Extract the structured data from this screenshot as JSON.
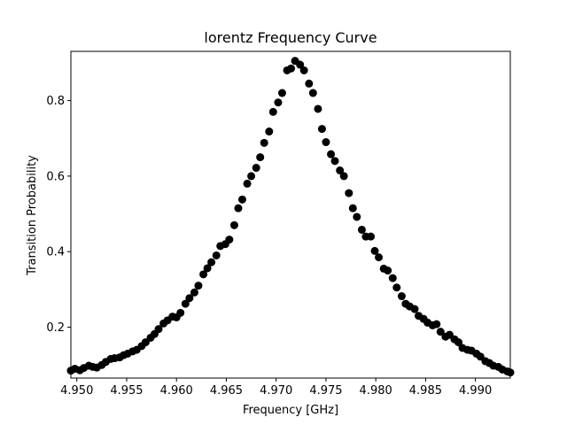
{
  "chart_data": {
    "type": "scatter",
    "title": "lorentz Frequency Curve",
    "xlabel": "Frequency [GHz]",
    "ylabel": "Transition Probability",
    "xlim": [
      4.9494,
      4.9935
    ],
    "ylim": [
      0.0653,
      0.9303
    ],
    "xticks": [
      4.95,
      4.955,
      4.96,
      4.965,
      4.97,
      4.975,
      4.98,
      4.985,
      4.99
    ],
    "xtick_labels": [
      "4.950",
      "4.955",
      "4.960",
      "4.965",
      "4.970",
      "4.975",
      "4.980",
      "4.985",
      "4.990"
    ],
    "yticks": [
      0.2,
      0.4,
      0.6,
      0.8
    ],
    "ytick_labels": [
      "0.2",
      "0.4",
      "0.6",
      "0.8"
    ],
    "grid": false,
    "marker_color": "#000000",
    "series": [
      {
        "x": [
          4.9494,
          4.9498,
          4.9503,
          4.9507,
          4.9512,
          4.9516,
          4.952,
          4.9525,
          4.9529,
          4.9534,
          4.9538,
          4.9543,
          4.9547,
          4.9551,
          4.9556,
          4.956,
          4.9565,
          4.9569,
          4.9574,
          4.9578,
          4.9582,
          4.9587,
          4.9591,
          4.9596,
          4.96,
          4.9604,
          4.9609,
          4.9613,
          4.9618,
          4.9622,
          4.9627,
          4.9631,
          4.9635,
          4.964,
          4.9644,
          4.9649,
          4.9653,
          4.9658,
          4.9662,
          4.9666,
          4.9671,
          4.9675,
          4.968,
          4.9684,
          4.9688,
          4.9693,
          4.9697,
          4.9702,
          4.9706,
          4.9711,
          4.9715,
          4.9719,
          4.9724,
          4.9728,
          4.9733,
          4.9737,
          4.9742,
          4.9746,
          4.975,
          4.9755,
          4.9759,
          4.9764,
          4.9768,
          4.9773,
          4.9777,
          4.9781,
          4.9786,
          4.979,
          4.9795,
          4.9799,
          4.9803,
          4.9808,
          4.9812,
          4.9817,
          4.9821,
          4.9826,
          4.983,
          4.9834,
          4.9839,
          4.9843,
          4.9848,
          4.9852,
          4.9857,
          4.9861,
          4.9865,
          4.987,
          4.9874,
          4.9879,
          4.9883,
          4.9887,
          4.9892,
          4.9896,
          4.9901,
          4.9905,
          4.991,
          4.9914,
          4.9918,
          4.9923,
          4.9927,
          4.9932,
          4.9935
        ],
        "y": [
          0.085,
          0.09,
          0.086,
          0.092,
          0.098,
          0.095,
          0.093,
          0.1,
          0.108,
          0.116,
          0.118,
          0.12,
          0.126,
          0.13,
          0.136,
          0.14,
          0.15,
          0.16,
          0.172,
          0.182,
          0.195,
          0.21,
          0.218,
          0.228,
          0.226,
          0.238,
          0.262,
          0.277,
          0.292,
          0.31,
          0.34,
          0.356,
          0.372,
          0.39,
          0.415,
          0.42,
          0.432,
          0.47,
          0.515,
          0.538,
          0.58,
          0.6,
          0.622,
          0.65,
          0.688,
          0.718,
          0.77,
          0.795,
          0.82,
          0.88,
          0.885,
          0.905,
          0.895,
          0.88,
          0.845,
          0.82,
          0.778,
          0.725,
          0.69,
          0.658,
          0.64,
          0.615,
          0.6,
          0.555,
          0.515,
          0.492,
          0.458,
          0.44,
          0.44,
          0.402,
          0.385,
          0.355,
          0.35,
          0.33,
          0.305,
          0.282,
          0.262,
          0.255,
          0.248,
          0.23,
          0.222,
          0.212,
          0.205,
          0.208,
          0.188,
          0.175,
          0.18,
          0.168,
          0.16,
          0.145,
          0.14,
          0.138,
          0.13,
          0.122,
          0.11,
          0.105,
          0.098,
          0.095,
          0.088,
          0.083,
          0.08
        ]
      }
    ]
  }
}
